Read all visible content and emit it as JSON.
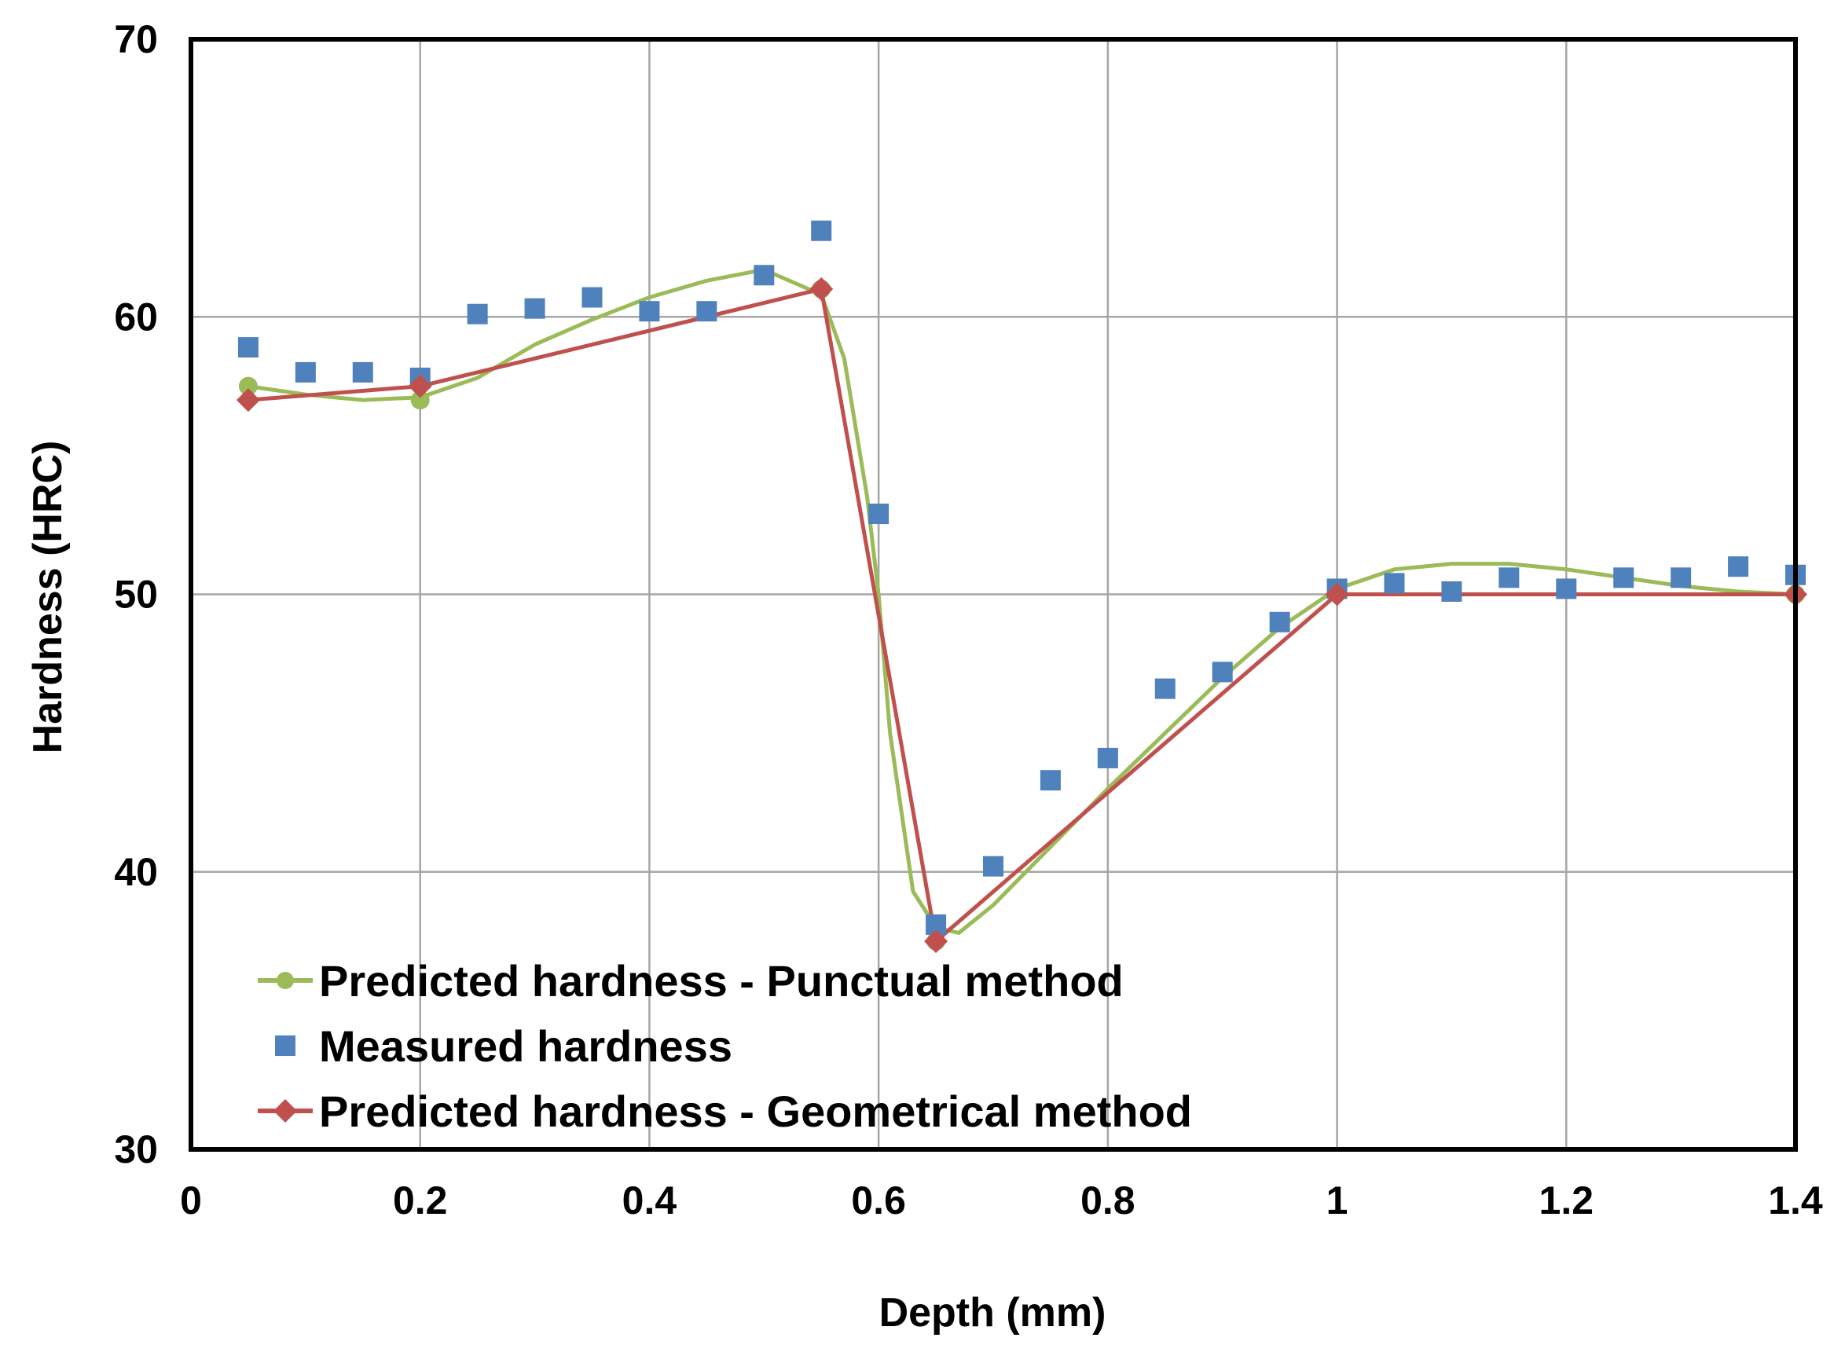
{
  "chart_data": {
    "type": "line",
    "title": "",
    "xlabel": "Depth (mm)",
    "ylabel": "Hardness (HRC)",
    "xlim": [
      0,
      1.4
    ],
    "ylim": [
      30,
      70
    ],
    "xticks": [
      0,
      0.2,
      0.4,
      0.6,
      0.8,
      1,
      1.2,
      1.4
    ],
    "xtick_labels": [
      "0",
      "0.2",
      "0.4",
      "0.6",
      "0.8",
      "1",
      "1.2",
      "1.4"
    ],
    "yticks": [
      30,
      40,
      50,
      60,
      70
    ],
    "ytick_labels": [
      "30",
      "40",
      "50",
      "60",
      "70"
    ],
    "grid": true,
    "legend_position": "bottom-left",
    "series": [
      {
        "name": "Predicted hardness - Punctual method",
        "style": "smooth-line-circle-markers",
        "color": "#9BBB59",
        "x": [
          0.05,
          0.2,
          0.55,
          0.65,
          1.0,
          1.4
        ],
        "y": [
          57.5,
          57.0,
          61.0,
          37.5,
          50.2,
          50.0
        ],
        "curve_x": [
          0.05,
          0.1,
          0.15,
          0.2,
          0.25,
          0.3,
          0.35,
          0.4,
          0.45,
          0.5,
          0.55,
          0.57,
          0.59,
          0.6,
          0.61,
          0.63,
          0.65,
          0.67,
          0.7,
          0.75,
          0.8,
          0.85,
          0.9,
          0.95,
          1.0,
          1.05,
          1.1,
          1.15,
          1.2,
          1.25,
          1.3,
          1.35,
          1.4
        ],
        "curve_y": [
          57.5,
          57.2,
          57.0,
          57.1,
          57.8,
          59.0,
          59.9,
          60.7,
          61.3,
          61.7,
          60.8,
          58.5,
          53.5,
          50.0,
          45.0,
          39.3,
          38.0,
          37.8,
          38.8,
          40.9,
          43.0,
          45.0,
          47.0,
          48.8,
          50.2,
          50.9,
          51.1,
          51.1,
          50.9,
          50.6,
          50.3,
          50.1,
          50.0
        ]
      },
      {
        "name": "Measured hardness",
        "style": "square-markers",
        "color": "#4F81BD",
        "x": [
          0.05,
          0.1,
          0.15,
          0.2,
          0.25,
          0.3,
          0.35,
          0.4,
          0.45,
          0.5,
          0.55,
          0.6,
          0.65,
          0.7,
          0.75,
          0.8,
          0.85,
          0.9,
          0.95,
          1.0,
          1.05,
          1.1,
          1.15,
          1.2,
          1.25,
          1.3,
          1.35,
          1.4
        ],
        "y": [
          58.9,
          58.0,
          58.0,
          57.8,
          60.1,
          60.3,
          60.7,
          60.2,
          60.2,
          61.5,
          63.1,
          52.9,
          38.1,
          40.2,
          43.3,
          44.1,
          46.6,
          47.2,
          49.0,
          50.2,
          50.4,
          50.1,
          50.6,
          50.2,
          50.6,
          50.6,
          51.0,
          50.7
        ]
      },
      {
        "name": "Predicted hardness - Geometrical method",
        "style": "line-diamond-markers",
        "color": "#C0504D",
        "x": [
          0.05,
          0.2,
          0.55,
          0.65,
          1.0,
          1.4
        ],
        "y": [
          57.0,
          57.5,
          61.0,
          37.5,
          50.0,
          50.0
        ]
      }
    ]
  }
}
